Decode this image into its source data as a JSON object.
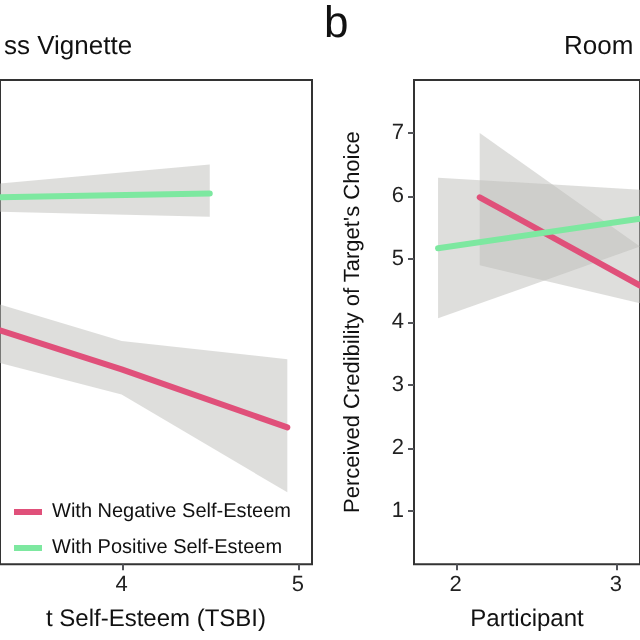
{
  "chart_data": [
    {
      "type": "line",
      "title": "ss Vignette",
      "xlabel": "t Self-Esteem (TSBI)",
      "xlim": [
        3.31,
        5.08
      ],
      "xticks": [
        4,
        5
      ],
      "ylim": [
        0.16,
        7.84
      ],
      "yticks": [
        1,
        2,
        3,
        4,
        5,
        6,
        7
      ],
      "tick_labels": "x",
      "grid": false,
      "marker": "none",
      "legend": "bottom left",
      "series": [
        {
          "name": "With Negative Self-Esteem",
          "color": "#e0507a",
          "x": [
            3.31,
            4,
            4.94
          ],
          "values": [
            3.87,
            3.25,
            2.33
          ],
          "lower": [
            3.35,
            2.85,
            1.3
          ],
          "upper": [
            4.28,
            3.7,
            3.41
          ]
        },
        {
          "name": "With Positive Self-Esteem",
          "color": "#7de8a0",
          "x": [
            3.31,
            4.5
          ],
          "values": [
            5.98,
            6.04
          ],
          "lower": [
            5.75,
            5.67
          ],
          "upper": [
            6.2,
            6.5
          ]
        }
      ]
    },
    {
      "type": "line",
      "title": "Room",
      "annotations": [
        "b"
      ],
      "xlabel": "Participant",
      "ylabel": "Perceived Credibility of Target's Choice",
      "xlim": [
        1.74,
        3.15
      ],
      "xticks": [
        2,
        3
      ],
      "ylim": [
        0.16,
        7.84
      ],
      "yticks": [
        1,
        2,
        3,
        4,
        5,
        6,
        7
      ],
      "grid": false,
      "marker": "none",
      "series": [
        {
          "color": "#e0507a",
          "x": [
            2.15,
            3.15
          ],
          "values": [
            5.98,
            4.58
          ],
          "lower": [
            4.9,
            4.3
          ],
          "upper": [
            7.0,
            5.2
          ]
        },
        {
          "color": "#7de8a0",
          "x": [
            1.89,
            3.15
          ],
          "values": [
            5.17,
            5.64
          ],
          "lower": [
            4.06,
            5.2
          ],
          "upper": [
            6.29,
            6.1
          ]
        }
      ]
    }
  ]
}
